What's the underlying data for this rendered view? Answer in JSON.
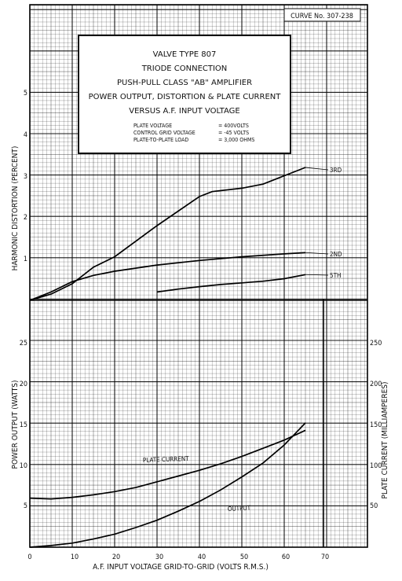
{
  "curve_number": "CURVE No. 307-238",
  "info_box": {
    "title_lines": [
      "VALVE TYPE 807",
      "TRIODE CONNECTION",
      "PUSH-PULL CLASS \"AB\"   AMPLIFIER",
      "POWER OUTPUT, DISTORTION & PLATE CURRENT",
      "VERSUS A.F. INPUT VOLTAGE"
    ],
    "conditions": [
      {
        "label": "PLATE VOLTAGE",
        "value": "= 400VOLTS"
      },
      {
        "label": "CONTROL GRID VOLTAGE",
        "value": "= -45 VOLTS"
      },
      {
        "label": "PLATE-TO-PLATE LOAD",
        "value": "= 3,000 OHMS"
      }
    ]
  },
  "chart_data": [
    {
      "type": "line",
      "ylabel": "HARMONIC DISTORTION (PERCENT)",
      "ylim": [
        0,
        5.8
      ],
      "y_ticks": [
        "1",
        "2",
        "3",
        "4",
        "5"
      ],
      "grid": true,
      "series": [
        {
          "name": "3RD",
          "x": [
            0,
            5,
            10,
            15,
            20,
            30,
            40,
            43,
            50,
            55,
            60,
            65
          ],
          "y": [
            0,
            0.15,
            0.4,
            0.8,
            1.05,
            1.8,
            2.5,
            2.62,
            2.7,
            2.8,
            3.0,
            3.2
          ]
        },
        {
          "name": "2ND",
          "x": [
            0,
            5,
            10,
            15,
            20,
            30,
            40,
            50,
            60,
            65
          ],
          "y": [
            0,
            0.2,
            0.45,
            0.6,
            0.7,
            0.85,
            0.96,
            1.05,
            1.12,
            1.15
          ]
        },
        {
          "name": "5TH",
          "x": [
            30,
            35,
            40,
            45,
            50,
            55,
            60,
            65
          ],
          "y": [
            0.2,
            0.27,
            0.33,
            0.38,
            0.42,
            0.46,
            0.52,
            0.62
          ]
        }
      ]
    },
    {
      "type": "line",
      "xlabel": "A.F. INPUT VOLTAGE GRID-TO-GRID (VOLTS R.M.S.)",
      "x_ticks": [
        "0",
        "10",
        "20",
        "30",
        "40",
        "50",
        "60",
        "70"
      ],
      "xlim": [
        0,
        80
      ],
      "ylabel": "POWER OUTPUT (WATTS)",
      "ylim": [
        0,
        30
      ],
      "y_ticks": [
        "5",
        "10",
        "15",
        "20",
        "25"
      ],
      "y2label": "PLATE CURRENT (MILLIAMPERES)",
      "y2lim": [
        0,
        300
      ],
      "y2_ticks": [
        "50",
        "100",
        "150",
        "200",
        "250"
      ],
      "grid": true,
      "series": [
        {
          "name": "PLATE CURRENT",
          "axis": "right",
          "x": [
            0,
            5,
            10,
            15,
            20,
            25,
            30,
            35,
            40,
            45,
            50,
            55,
            60,
            65
          ],
          "y": [
            60,
            59,
            61,
            64,
            68,
            73,
            80,
            87,
            94,
            102,
            111,
            121,
            131,
            143
          ]
        },
        {
          "name": "OUTPUT",
          "axis": "left",
          "x": [
            0,
            5,
            10,
            15,
            20,
            25,
            30,
            35,
            40,
            45,
            50,
            55,
            60,
            65
          ],
          "y": [
            0,
            0.2,
            0.5,
            1.0,
            1.6,
            2.4,
            3.3,
            4.4,
            5.6,
            7.0,
            8.6,
            10.3,
            12.5,
            15.2
          ]
        }
      ]
    }
  ]
}
